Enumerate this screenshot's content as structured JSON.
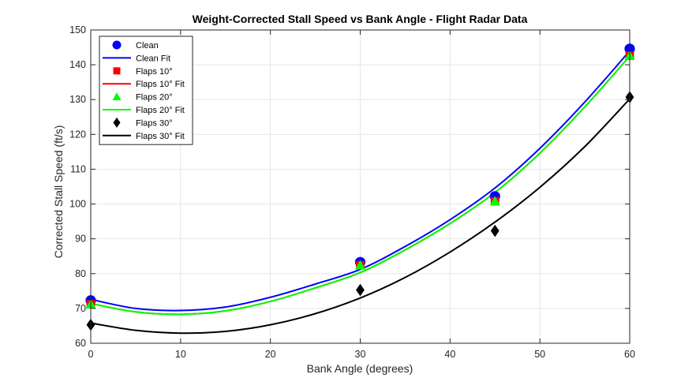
{
  "chart_data": {
    "type": "scatter",
    "title": "Weight-Corrected Stall Speed vs Bank Angle - Flight Radar Data",
    "xlabel": "Bank Angle (degrees)",
    "ylabel": "Corrected Stall Speed (ft/s)",
    "xlim": [
      0,
      60
    ],
    "ylim": [
      60,
      150
    ],
    "xticks": [
      0,
      10,
      20,
      30,
      40,
      50,
      60
    ],
    "yticks": [
      60,
      70,
      80,
      90,
      100,
      110,
      120,
      130,
      140,
      150
    ],
    "grid": true,
    "legend_position": "top-left",
    "series": [
      {
        "name": "Clean",
        "kind": "points",
        "marker": "circle",
        "color": "#0000ff",
        "x": [
          0,
          30,
          45,
          60
        ],
        "y": [
          72.3,
          83.3,
          102.2,
          144.6
        ]
      },
      {
        "name": "Clean Fit",
        "kind": "line",
        "color": "#0000ff",
        "x": [
          0,
          5,
          10,
          15,
          20,
          25,
          30,
          35,
          40,
          45,
          50,
          55,
          60
        ],
        "y": [
          72.6,
          70.0,
          69.4,
          70.4,
          73.2,
          77.0,
          81.2,
          87.8,
          95.5,
          104.6,
          116.0,
          129.3,
          144.0
        ]
      },
      {
        "name": "Flaps 10°",
        "kind": "points",
        "marker": "square",
        "color": "#ff0000",
        "x": [
          0,
          30,
          45,
          60
        ],
        "y": [
          71.2,
          82.4,
          100.8,
          142.6
        ]
      },
      {
        "name": "Flaps 10° Fit",
        "kind": "line",
        "color": "#ff0000",
        "x": [
          0,
          5,
          10,
          15,
          20,
          25,
          30,
          35,
          40,
          45,
          50,
          55,
          60
        ],
        "y": [
          71.4,
          69.0,
          68.3,
          69.3,
          72.0,
          75.9,
          80.3,
          86.8,
          94.4,
          103.3,
          114.6,
          127.9,
          142.5
        ]
      },
      {
        "name": "Flaps 20°",
        "kind": "points",
        "marker": "triangle",
        "color": "#00ff00",
        "x": [
          0,
          30,
          45,
          60
        ],
        "y": [
          71.2,
          82.4,
          100.8,
          142.6
        ]
      },
      {
        "name": "Flaps 20° Fit",
        "kind": "line",
        "color": "#00ff00",
        "x": [
          0,
          5,
          10,
          15,
          20,
          25,
          30,
          35,
          40,
          45,
          50,
          55,
          60
        ],
        "y": [
          71.4,
          69.0,
          68.3,
          69.3,
          72.0,
          75.9,
          80.3,
          86.8,
          94.4,
          103.3,
          114.6,
          127.9,
          142.5
        ]
      },
      {
        "name": "Flaps 30°",
        "kind": "points",
        "marker": "diamond",
        "color": "#000000",
        "x": [
          0,
          30,
          45,
          60
        ],
        "y": [
          65.3,
          75.3,
          92.3,
          130.7
        ]
      },
      {
        "name": "Flaps 30° Fit",
        "kind": "line",
        "color": "#000000",
        "x": [
          0,
          5,
          10,
          15,
          20,
          25,
          30,
          35,
          40,
          45,
          50,
          55,
          60
        ],
        "y": [
          65.8,
          63.7,
          62.9,
          63.4,
          65.3,
          68.5,
          73.0,
          78.9,
          86.2,
          94.8,
          104.8,
          116.5,
          130.2
        ]
      }
    ]
  }
}
